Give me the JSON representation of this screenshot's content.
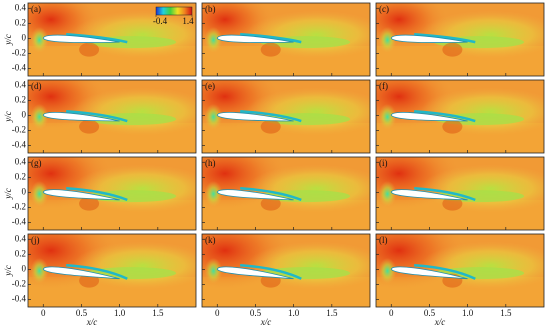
{
  "chart_data": {
    "type": "contour",
    "panels": [
      "(a)",
      "(b)",
      "(c)",
      "(d)",
      "(e)",
      "(f)",
      "(g)",
      "(h)",
      "(i)",
      "(j)",
      "(k)",
      "(l)"
    ],
    "x_label": "x/c",
    "y_label": "y/c",
    "xlim": [
      -0.2,
      2.0
    ],
    "ylim": [
      -0.5,
      0.47
    ],
    "xticks": [
      0,
      0.5,
      {
        "value": 1,
        "label": "1.0"
      },
      1.5
    ],
    "yticks": [
      -0.4,
      -0.2,
      0,
      0.2,
      0.4
    ],
    "colorbar": {
      "ticks": [
        -0.4,
        1.4
      ],
      "colors": [
        "#2030d0",
        "#20d0e0",
        "#40d040",
        "#f0e020",
        "#f08020",
        "#d01010"
      ]
    }
  }
}
